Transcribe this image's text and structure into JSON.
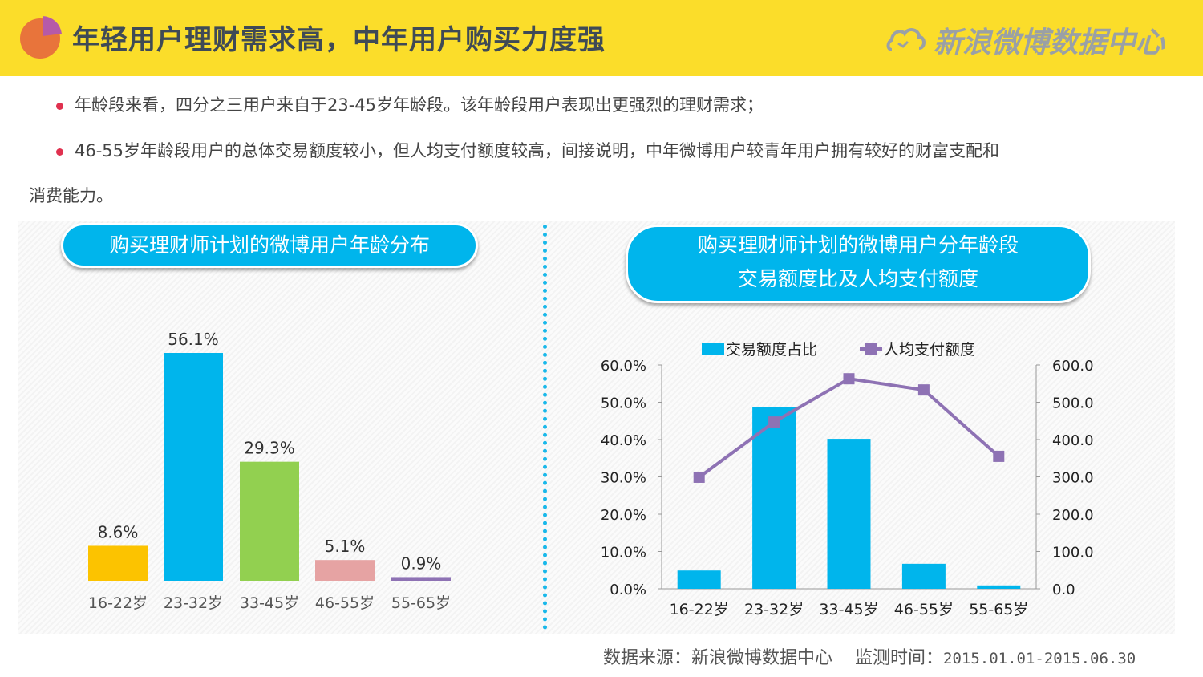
{
  "header": {
    "title": "年轻用户理财需求高，中年用户购买力度强",
    "brand": "新浪微博数据中心",
    "pie_icon": "pie-chart-icon",
    "logo_icon": "weibo-cloud-icon"
  },
  "bullets": [
    "年龄段来看，四分之三用户来自于23-45岁年龄段。该年龄段用户表现出更强烈的理财需求；",
    "46-55岁年龄段用户的总体交易额度较小，但人均支付额度较高，间接说明，中年微博用户较青年用户拥有较好的财富支配和"
  ],
  "bullet_continuation": "消费能力。",
  "colors": {
    "accent": "#00b5ec",
    "header": "#fbdd2a",
    "bullet": "#e0314f",
    "line": "#8e72b4"
  },
  "chart_data": [
    {
      "type": "bar",
      "title": "购买理财师计划的微博用户年龄分布",
      "categories": [
        "16-22岁",
        "23-32岁",
        "33-45岁",
        "46-55岁",
        "55-65岁"
      ],
      "values": [
        8.6,
        56.1,
        29.3,
        5.1,
        0.9
      ],
      "data_labels": [
        "8.6%",
        "56.1%",
        "29.3%",
        "5.1%",
        "0.9%"
      ],
      "bar_colors": [
        "#fcc300",
        "#00b5ec",
        "#92d050",
        "#e6a3a3",
        "#8e72b4"
      ],
      "ylim": [
        0,
        60
      ],
      "grid": false
    },
    {
      "type": "bar+line",
      "title_lines": [
        "购买理财师计划的微博用户分年龄段",
        "交易额度比及人均支付额度"
      ],
      "categories": [
        "16-22岁",
        "23-32岁",
        "33-45岁",
        "46-55岁",
        "55-65岁"
      ],
      "series": [
        {
          "name": "交易额度占比",
          "type": "bar",
          "axis": "left",
          "values": [
            4.9,
            48.8,
            40.2,
            6.7,
            0.9
          ],
          "color": "#00b5ec"
        },
        {
          "name": "人均支付额度",
          "type": "line",
          "axis": "right",
          "values": [
            299,
            447,
            563,
            533,
            355
          ],
          "color": "#8e72b4"
        }
      ],
      "left_axis": {
        "ylim": [
          0,
          60
        ],
        "ticks": [
          "0.0%",
          "10.0%",
          "20.0%",
          "30.0%",
          "40.0%",
          "50.0%",
          "60.0%"
        ]
      },
      "right_axis": {
        "ylim": [
          0,
          600
        ],
        "ticks": [
          "0.0",
          "100.0",
          "200.0",
          "300.0",
          "400.0",
          "500.0",
          "600.0"
        ]
      },
      "legend": "top",
      "grid": false
    }
  ],
  "footer": {
    "source": "数据来源：新浪微博数据中心",
    "period_label": "监测时间：",
    "period": "2015.01.01-2015.06.30"
  }
}
